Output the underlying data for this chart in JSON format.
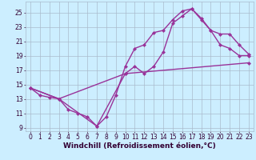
{
  "background_color": "#cceeff",
  "grid_color": "#aabbcc",
  "line_color": "#993399",
  "marker": "D",
  "markersize": 2.5,
  "linewidth": 1.0,
  "xlabel": "Windchill (Refroidissement éolien,°C)",
  "xlabel_fontsize": 6.5,
  "tick_fontsize": 5.5,
  "xlim": [
    -0.5,
    23.5
  ],
  "ylim": [
    8.5,
    26.5
  ],
  "yticks": [
    9,
    11,
    13,
    15,
    17,
    19,
    21,
    23,
    25
  ],
  "xticks": [
    0,
    1,
    2,
    3,
    4,
    5,
    6,
    7,
    8,
    9,
    10,
    11,
    12,
    13,
    14,
    15,
    16,
    17,
    18,
    19,
    20,
    21,
    22,
    23
  ],
  "line1_x": [
    0,
    1,
    2,
    3,
    4,
    5,
    6,
    7,
    8,
    9,
    10,
    11,
    12,
    13,
    14,
    15,
    16,
    17,
    18,
    19,
    20,
    21,
    22,
    23
  ],
  "line1_y": [
    14.5,
    13.5,
    13.2,
    13.0,
    11.5,
    11.0,
    10.5,
    9.2,
    10.5,
    13.5,
    17.5,
    20.0,
    20.5,
    22.2,
    22.5,
    24.0,
    25.2,
    25.5,
    24.0,
    22.5,
    20.5,
    20.0,
    19.0,
    19.0
  ],
  "line2_x": [
    0,
    3,
    7,
    10,
    11,
    12,
    13,
    14,
    15,
    16,
    17,
    18,
    19,
    20,
    21,
    22,
    23
  ],
  "line2_y": [
    14.5,
    13.0,
    9.2,
    16.5,
    17.5,
    16.5,
    17.5,
    19.5,
    23.5,
    24.5,
    25.5,
    24.2,
    22.5,
    22.0,
    22.0,
    20.5,
    19.2
  ],
  "line3_x": [
    0,
    3,
    10,
    23
  ],
  "line3_y": [
    14.5,
    13.0,
    16.5,
    18.0
  ]
}
